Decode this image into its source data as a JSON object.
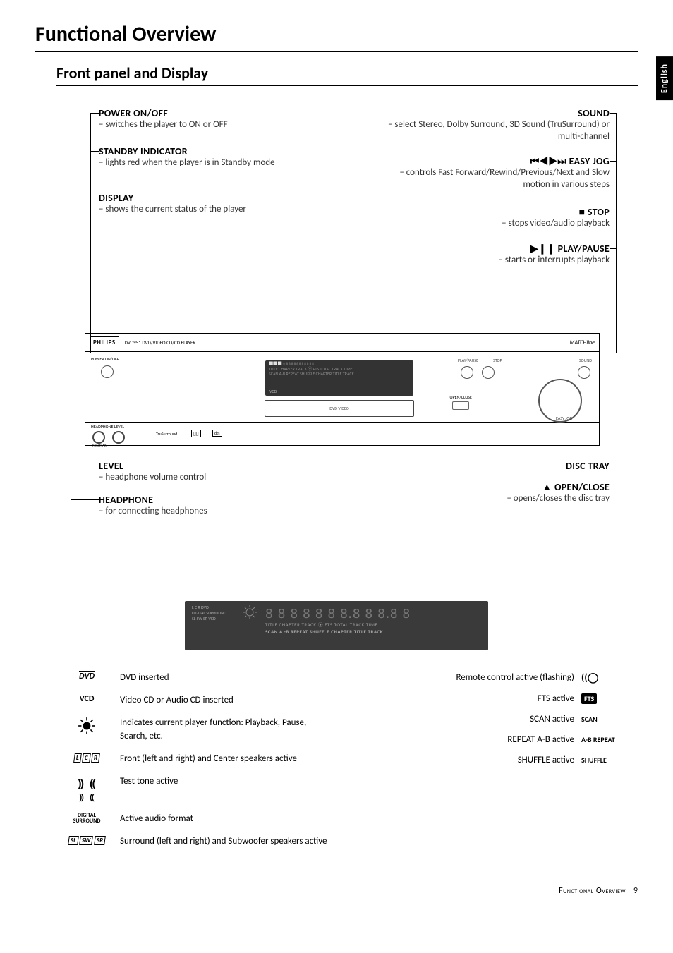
{
  "page": {
    "title": "Functional Overview",
    "subtitle": "Front panel and Display",
    "langTab": "English",
    "footerLabel": "Functional Overview",
    "pageNumber": "9"
  },
  "labelsLeft": {
    "power": {
      "title": "POWER ON/OFF",
      "desc": "– switches the player to ON or OFF"
    },
    "standby": {
      "title": "STANDBY INDICATOR",
      "desc": "– lights red when the player is in Standby mode"
    },
    "display": {
      "title": "DISPLAY",
      "desc": "– shows the current status of the player"
    },
    "level": {
      "title": "LEVEL",
      "desc": "– headphone volume control"
    },
    "headphone": {
      "title": "HEADPHONE",
      "desc": "– for connecting headphones"
    }
  },
  "labelsRight": {
    "sound": {
      "title": "SOUND",
      "desc": "– select Stereo, Dolby Surround, 3D Sound (TruSurround) or multi-channel"
    },
    "easyjog": {
      "symbol": "⏮◀▶⏭",
      "title": "EASY JOG",
      "desc": "– controls Fast Forward/Rewind/Previous/Next and Slow motion in various steps"
    },
    "stop": {
      "symbol": "■",
      "title": "STOP",
      "desc": "– stops video/audio playback"
    },
    "play": {
      "symbol": "▶❙❙",
      "title": "PLAY/PAUSE",
      "desc": "– starts or interrupts playback"
    },
    "tray": {
      "title": "DISC TRAY"
    },
    "open": {
      "symbol": "▲",
      "title": "OPEN/CLOSE",
      "desc": "– opens/closes the disc tray"
    }
  },
  "device": {
    "model": "DVD951  DVD/VIDEO CD/CD PLAYER",
    "powerLabel": "POWER ON/OFF",
    "hpLevel": "HEADPHONE  LEVEL",
    "minmax": "MIN            MAX",
    "playLbl": "PLAY/PAUSE",
    "stopLbl": "STOP",
    "openLbl": "OPEN/CLOSE",
    "jogLbl": "EASY JOG",
    "soundLbl": "SOUND",
    "matchline": "MATCHline",
    "displayLine1": "TITLE  CHAPTER  TRACK  ⦿  FTS  TOTAL TRACK TIME",
    "displayLine2": "SCAN  A-B REPEAT  SHUFFLE  CHAPTER  TITLE  TRACK",
    "vcdLbl": "VCD",
    "trayText": "DVD VIDEO"
  },
  "bigDisplay": {
    "line2": "TITLE   CHAPTER    TRACK   ⦿   FTS   TOTAL  TRACK  TIME",
    "line3": "SCAN  A -B REPEAT   SHUFFLE   CHAPTER   TITLE   TRACK",
    "leftTop": "L  C  R      DVD",
    "leftMid": "DIGITAL SURROUND",
    "leftBot": "SL SW SR     VCD"
  },
  "legendLeft": [
    {
      "icon": "DVD",
      "iconStyle": "underline",
      "text": "DVD inserted"
    },
    {
      "icon": "VCD",
      "iconStyle": "bold",
      "text": "Video CD or Audio CD inserted"
    },
    {
      "icon": "✱",
      "iconStyle": "sun",
      "text": "Indicates current player function: Playback, Pause, Search, etc."
    },
    {
      "icon": "L  C  R",
      "iconStyle": "speakers",
      "text": "Front (left and right) and Center speakers active"
    },
    {
      "icon": "⸨    ⸩",
      "iconStyle": "waves",
      "text": "Test tone active"
    },
    {
      "icon": "DIGITAL\nSURROUND",
      "iconStyle": "tiny",
      "text": "Active audio format"
    },
    {
      "icon": "SL SW SR",
      "iconStyle": "speakers",
      "text": "Surround (left and right) and Subwoofer speakers active"
    }
  ],
  "legendRight": [
    {
      "text": "Remote control active (flashing)",
      "icon": "⦾"
    },
    {
      "text": "FTS active",
      "icon": "FTS",
      "boxed": true
    },
    {
      "text": "SCAN active",
      "icon": "SCAN"
    },
    {
      "text": "REPEAT A-B active",
      "icon": "A-B REPEAT"
    },
    {
      "text": "SHUFFLE active",
      "icon": "SHUFFLE"
    }
  ]
}
